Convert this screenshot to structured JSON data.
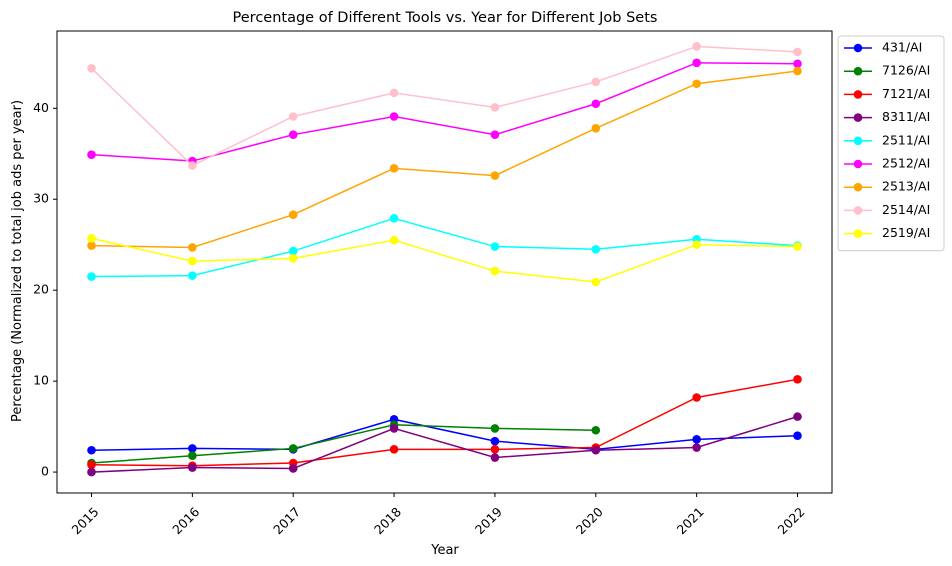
{
  "chart_data": {
    "type": "line",
    "title": "Percentage of Different Tools vs. Year for Different Job Sets",
    "xlabel": "Year",
    "ylabel": "Percentage (Normalized to total job ads per year)",
    "x": [
      "2015",
      "2016",
      "2017",
      "2018",
      "2019",
      "2020",
      "2021",
      "2022"
    ],
    "ylim": [
      -2.3,
      48.5
    ],
    "yticks": [
      0,
      10,
      20,
      30,
      40
    ],
    "grid": false,
    "legend_position": "outside-top-right",
    "series": [
      {
        "name": "431/AI",
        "color": "#0000ff",
        "values": [
          2.4,
          2.6,
          2.5,
          5.8,
          3.4,
          2.5,
          3.6,
          4.0
        ]
      },
      {
        "name": "7126/AI",
        "color": "#008000",
        "values": [
          1.0,
          1.8,
          2.6,
          5.2,
          4.8,
          4.6,
          null,
          null
        ]
      },
      {
        "name": "7121/AI",
        "color": "#ff0000",
        "values": [
          0.8,
          0.7,
          1.0,
          2.5,
          2.5,
          2.7,
          8.2,
          10.2
        ]
      },
      {
        "name": "8311/AI",
        "color": "#800080",
        "values": [
          0.0,
          0.5,
          0.4,
          4.8,
          1.6,
          2.4,
          2.7,
          6.1
        ]
      },
      {
        "name": "2511/AI",
        "color": "#00ffff",
        "values": [
          21.5,
          21.6,
          24.3,
          27.9,
          24.8,
          24.5,
          25.6,
          24.9
        ]
      },
      {
        "name": "2512/AI",
        "color": "#ff00ff",
        "values": [
          34.9,
          34.2,
          37.1,
          39.1,
          37.1,
          40.5,
          45.0,
          44.9
        ]
      },
      {
        "name": "2513/AI",
        "color": "#ffa500",
        "values": [
          24.9,
          24.7,
          28.3,
          33.4,
          32.6,
          37.8,
          42.7,
          44.1
        ]
      },
      {
        "name": "2514/AI",
        "color": "#ffc0cb",
        "values": [
          44.4,
          33.7,
          39.1,
          41.7,
          40.1,
          42.9,
          46.8,
          46.2
        ]
      },
      {
        "name": "2519/AI",
        "color": "#ffff00",
        "values": [
          25.7,
          23.2,
          23.5,
          25.5,
          22.1,
          20.9,
          25.0,
          24.8
        ]
      }
    ]
  }
}
